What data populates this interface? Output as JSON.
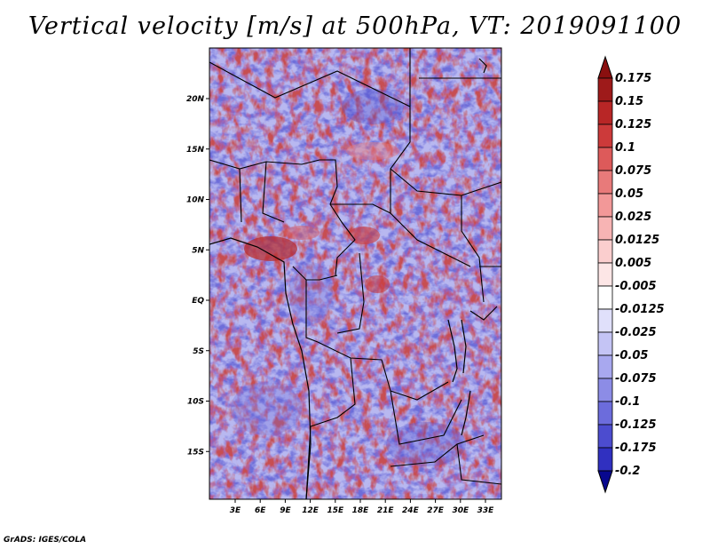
{
  "title": "Vertical velocity [m/s] at 500hPa, VT: 2019091100",
  "footer": "GrADS: IGES/COLA",
  "map": {
    "lon_range": [
      0,
      35
    ],
    "lat_range": [
      -20,
      25
    ],
    "lat_ticks": [
      {
        "value": 20,
        "label": "20N"
      },
      {
        "value": 15,
        "label": "15N"
      },
      {
        "value": 10,
        "label": "10N"
      },
      {
        "value": 5,
        "label": "5N"
      },
      {
        "value": 0,
        "label": "EQ"
      },
      {
        "value": -5,
        "label": "5S"
      },
      {
        "value": -10,
        "label": "10S"
      },
      {
        "value": -15,
        "label": "15S"
      }
    ],
    "lon_ticks": [
      {
        "value": 3,
        "label": "3E"
      },
      {
        "value": 6,
        "label": "6E"
      },
      {
        "value": 9,
        "label": "9E"
      },
      {
        "value": 12,
        "label": "12E"
      },
      {
        "value": 15,
        "label": "15E"
      },
      {
        "value": 18,
        "label": "18E"
      },
      {
        "value": 21,
        "label": "21E"
      },
      {
        "value": 24,
        "label": "24E"
      },
      {
        "value": 27,
        "label": "27E"
      },
      {
        "value": 30,
        "label": "30E"
      },
      {
        "value": 33,
        "label": "33E"
      }
    ]
  },
  "colorbar": {
    "levels": [
      {
        "label": "0.175",
        "color": "#9e1a1a"
      },
      {
        "label": "0.15",
        "color": "#b82626"
      },
      {
        "label": "0.125",
        "color": "#cc3a3a"
      },
      {
        "label": "0.1",
        "color": "#dd5a5a"
      },
      {
        "label": "0.075",
        "color": "#e87a7a"
      },
      {
        "label": "0.05",
        "color": "#f29898"
      },
      {
        "label": "0.025",
        "color": "#f7b4b4"
      },
      {
        "label": "0.0125",
        "color": "#fbcece"
      },
      {
        "label": "0.005",
        "color": "#fde6e6"
      },
      {
        "label": "-0.005",
        "color": "#ffffff"
      },
      {
        "label": "-0.0125",
        "color": "#e0e0fb"
      },
      {
        "label": "-0.025",
        "color": "#c4c4f5"
      },
      {
        "label": "-0.05",
        "color": "#a8a8ef"
      },
      {
        "label": "-0.075",
        "color": "#8c8ce6"
      },
      {
        "label": "-0.1",
        "color": "#6c6cdc"
      },
      {
        "label": "-0.125",
        "color": "#4c4ccf"
      },
      {
        "label": "-0.175",
        "color": "#3030c0"
      },
      {
        "label": "-0.2",
        "color": "#1414a8"
      }
    ],
    "top_arrow_color": "#8a0f0f",
    "bottom_arrow_color": "#08088f"
  }
}
